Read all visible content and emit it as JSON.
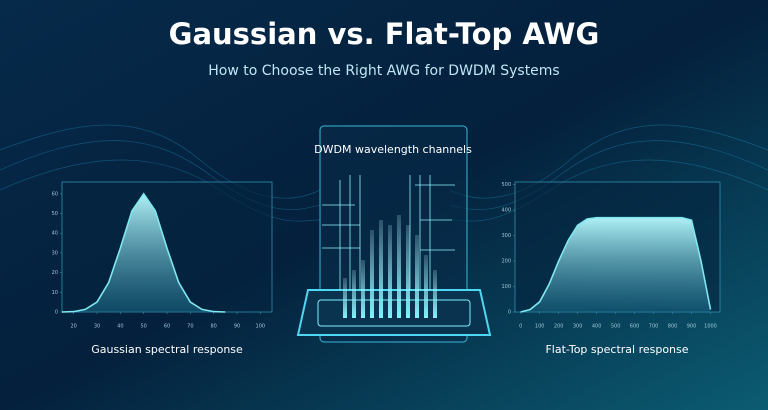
{
  "header": {
    "title": "Gaussian vs. Flat-Top AWG",
    "subtitle": "How to Choose the Right AWG for DWDM Systems"
  },
  "center_label": "DWDM wavelength channels",
  "chart_data": [
    {
      "type": "area",
      "caption": "Gaussian spectral response",
      "color": "#7fe8f0",
      "x": [
        15,
        20,
        25,
        30,
        35,
        40,
        45,
        50,
        55,
        60,
        65,
        70,
        75,
        80,
        85
      ],
      "values": [
        0,
        0.2,
        1.3,
        5.1,
        15,
        32.4,
        51.4,
        60,
        51.4,
        32.4,
        15,
        5.1,
        1.3,
        0.2,
        0
      ],
      "xlim": [
        15,
        105
      ],
      "ylim": [
        0,
        66
      ],
      "xticks": [
        20,
        30,
        40,
        50,
        60,
        70,
        80,
        90,
        100
      ],
      "yticks": [
        0,
        10,
        20,
        30,
        40,
        50,
        60
      ]
    },
    {
      "type": "area",
      "caption": "Flat-Top spectral response",
      "color": "#7fe8f0",
      "x": [
        0,
        50,
        100,
        150,
        200,
        250,
        300,
        350,
        400,
        450,
        500,
        550,
        600,
        650,
        700,
        750,
        800,
        850,
        900,
        950,
        1000
      ],
      "values": [
        0,
        10,
        40,
        110,
        200,
        280,
        340,
        365,
        370,
        370,
        370,
        370,
        370,
        370,
        370,
        370,
        370,
        370,
        360,
        200,
        10
      ],
      "xlim": [
        -30,
        1050
      ],
      "ylim": [
        0,
        510
      ],
      "xticks": [
        0,
        100,
        200,
        300,
        400,
        500,
        600,
        700,
        800,
        900,
        1000
      ],
      "yticks": [
        0,
        100,
        200,
        300,
        400,
        500
      ]
    }
  ]
}
